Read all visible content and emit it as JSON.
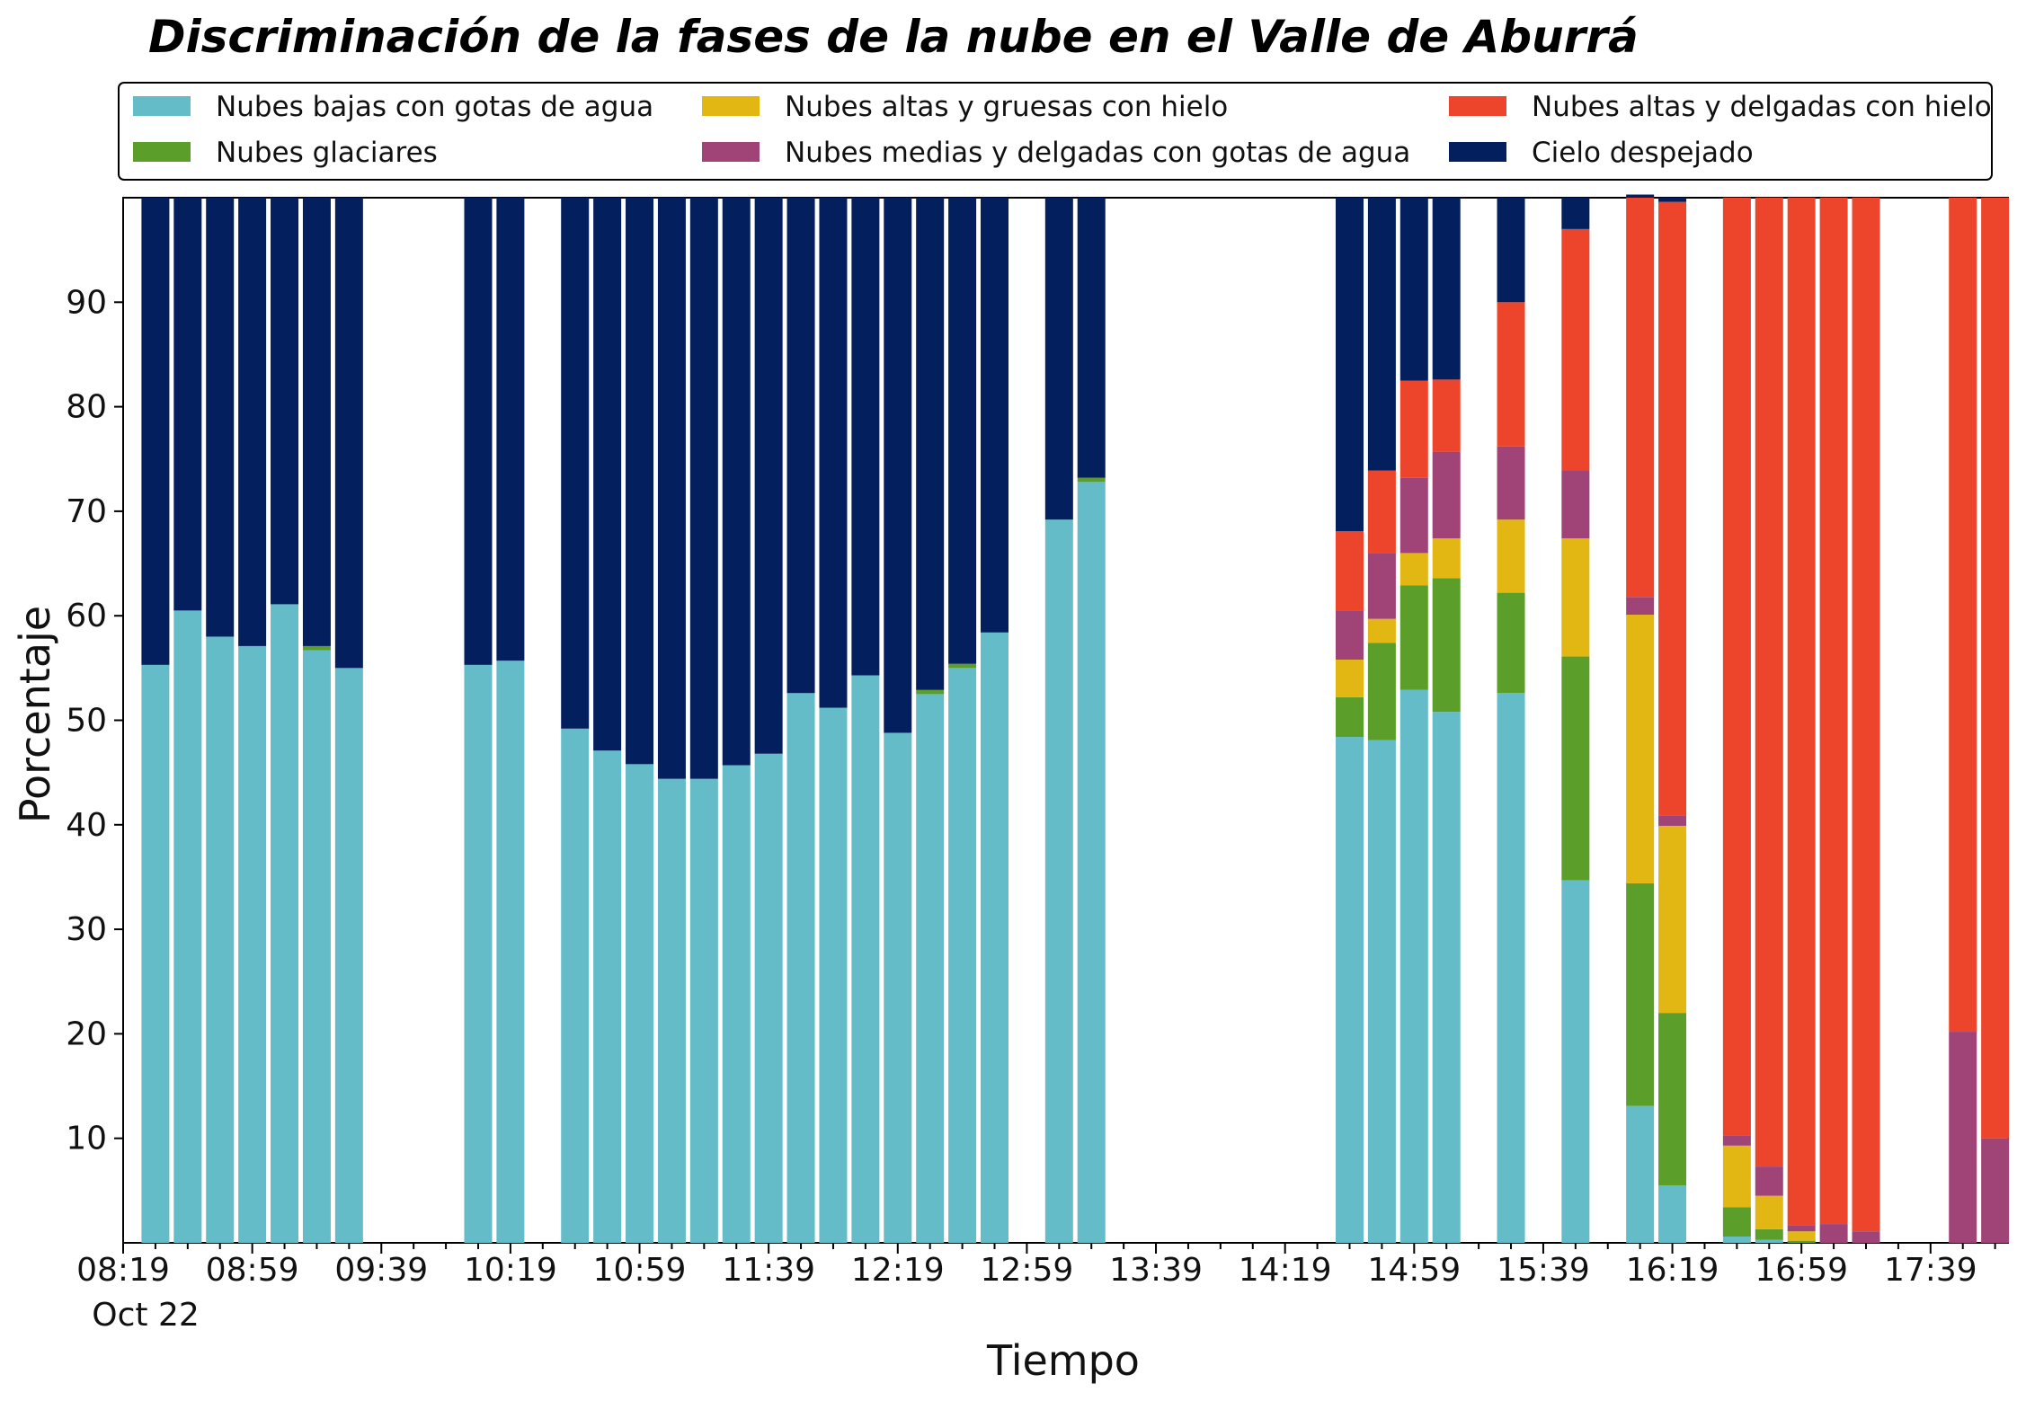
{
  "chart_data": {
    "type": "bar",
    "stacked": true,
    "title": "Discriminación de la fases de la nube en el Valle de Aburrá",
    "xlabel": "Tiempo",
    "ylabel": "Porcentaje",
    "ylim": [
      0,
      100
    ],
    "yticks": [
      10,
      20,
      30,
      40,
      50,
      60,
      70,
      80,
      90
    ],
    "xlim_minutes": [
      499,
      1083
    ],
    "xtick_labels": [
      "08:19",
      "08:59",
      "09:39",
      "10:19",
      "10:59",
      "11:39",
      "12:19",
      "12:59",
      "13:39",
      "14:19",
      "14:59",
      "15:39",
      "16:19",
      "16:59",
      "17:39"
    ],
    "xtick_minutes": [
      499,
      539,
      579,
      619,
      659,
      699,
      739,
      779,
      819,
      859,
      899,
      939,
      979,
      1019,
      1059
    ],
    "date_label": "Oct 22",
    "legend_position": "top",
    "series": [
      {
        "name": "Nubes bajas con gotas de agua",
        "color": "#65bcc9"
      },
      {
        "name": "Nubes glaciares",
        "color": "#5b9f2a"
      },
      {
        "name": "Nubes altas y gruesas con hielo",
        "color": "#e2b613"
      },
      {
        "name": "Nubes medias y delgadas con gotas de agua",
        "color": "#a04478"
      },
      {
        "name": "Nubes altas y delgadas con hielo",
        "color": "#ec452b"
      },
      {
        "name": "Cielo despejado",
        "color": "#041f5d"
      }
    ],
    "bars": [
      {
        "t": "08:29",
        "values": [
          55.3,
          0,
          0,
          0,
          0,
          44.7
        ]
      },
      {
        "t": "08:39",
        "values": [
          60.5,
          0,
          0,
          0,
          0,
          39.5
        ]
      },
      {
        "t": "08:49",
        "values": [
          58.0,
          0,
          0,
          0,
          0,
          42.0
        ]
      },
      {
        "t": "08:59",
        "values": [
          57.1,
          0,
          0,
          0,
          0,
          42.9
        ]
      },
      {
        "t": "09:09",
        "values": [
          61.1,
          0,
          0,
          0,
          0,
          38.9
        ]
      },
      {
        "t": "09:19",
        "values": [
          56.7,
          0.4,
          0,
          0,
          0,
          42.9
        ]
      },
      {
        "t": "09:29",
        "values": [
          55.0,
          0,
          0,
          0,
          0,
          45.0
        ]
      },
      {
        "t": "10:09",
        "values": [
          55.3,
          0,
          0,
          0,
          0,
          44.7
        ]
      },
      {
        "t": "10:19",
        "values": [
          55.7,
          0,
          0,
          0,
          0,
          44.3
        ]
      },
      {
        "t": "10:39",
        "values": [
          49.2,
          0,
          0,
          0,
          0,
          50.8
        ]
      },
      {
        "t": "10:49",
        "values": [
          47.1,
          0,
          0,
          0,
          0,
          52.9
        ]
      },
      {
        "t": "10:59",
        "values": [
          45.8,
          0,
          0,
          0,
          0,
          54.2
        ]
      },
      {
        "t": "11:09",
        "values": [
          44.4,
          0,
          0,
          0,
          0,
          55.6
        ]
      },
      {
        "t": "11:19",
        "values": [
          44.4,
          0,
          0,
          0,
          0,
          55.6
        ]
      },
      {
        "t": "11:29",
        "values": [
          45.7,
          0,
          0,
          0,
          0,
          54.3
        ]
      },
      {
        "t": "11:39",
        "values": [
          46.8,
          0,
          0,
          0,
          0,
          53.2
        ]
      },
      {
        "t": "11:49",
        "values": [
          52.6,
          0,
          0,
          0,
          0,
          47.4
        ]
      },
      {
        "t": "11:59",
        "values": [
          51.2,
          0,
          0,
          0,
          0,
          48.8
        ]
      },
      {
        "t": "12:09",
        "values": [
          54.3,
          0,
          0,
          0,
          0,
          45.7
        ]
      },
      {
        "t": "12:19",
        "values": [
          48.8,
          0,
          0,
          0,
          0,
          51.2
        ]
      },
      {
        "t": "12:29",
        "values": [
          52.5,
          0.4,
          0,
          0,
          0,
          47.1
        ]
      },
      {
        "t": "12:39",
        "values": [
          55.0,
          0.4,
          0,
          0,
          0,
          44.6
        ]
      },
      {
        "t": "12:49",
        "values": [
          58.4,
          0,
          0,
          0,
          0,
          41.6
        ]
      },
      {
        "t": "13:09",
        "values": [
          69.2,
          0,
          0,
          0,
          0,
          30.8
        ]
      },
      {
        "t": "13:19",
        "values": [
          72.8,
          0.4,
          0,
          0,
          0,
          26.8
        ]
      },
      {
        "t": "14:39",
        "values": [
          48.4,
          3.8,
          3.6,
          4.7,
          7.6,
          31.9
        ]
      },
      {
        "t": "14:49",
        "values": [
          48.1,
          9.3,
          2.3,
          6.3,
          7.9,
          26.1
        ]
      },
      {
        "t": "14:59",
        "values": [
          52.9,
          10.0,
          3.1,
          7.2,
          9.3,
          17.5
        ]
      },
      {
        "t": "15:09",
        "values": [
          50.8,
          12.8,
          3.8,
          8.3,
          6.9,
          17.4
        ]
      },
      {
        "t": "15:29",
        "values": [
          52.6,
          9.6,
          7.0,
          7.0,
          13.8,
          10.0
        ]
      },
      {
        "t": "15:49",
        "values": [
          34.7,
          21.4,
          11.3,
          6.5,
          23.1,
          3.0
        ]
      },
      {
        "t": "16:09",
        "values": [
          13.1,
          21.3,
          25.7,
          1.7,
          38.2,
          0.3
        ]
      },
      {
        "t": "16:19",
        "values": [
          5.5,
          16.5,
          17.9,
          1.0,
          58.7,
          0.4
        ]
      },
      {
        "t": "16:39",
        "values": [
          0.6,
          2.8,
          5.9,
          1.0,
          89.7,
          0
        ]
      },
      {
        "t": "16:49",
        "values": [
          0.3,
          1.0,
          3.2,
          2.8,
          92.7,
          0
        ]
      },
      {
        "t": "16:59",
        "values": [
          0,
          0.2,
          0.9,
          0.6,
          98.3,
          0
        ]
      },
      {
        "t": "17:09",
        "values": [
          0,
          0,
          0,
          1.8,
          98.2,
          0
        ]
      },
      {
        "t": "17:19",
        "values": [
          0,
          0,
          0,
          1.1,
          98.9,
          0
        ]
      },
      {
        "t": "17:49",
        "values": [
          0,
          0,
          0,
          20.2,
          79.8,
          0
        ]
      },
      {
        "t": "17:59",
        "values": [
          0,
          0,
          0,
          10.0,
          90.0,
          0
        ]
      }
    ]
  }
}
